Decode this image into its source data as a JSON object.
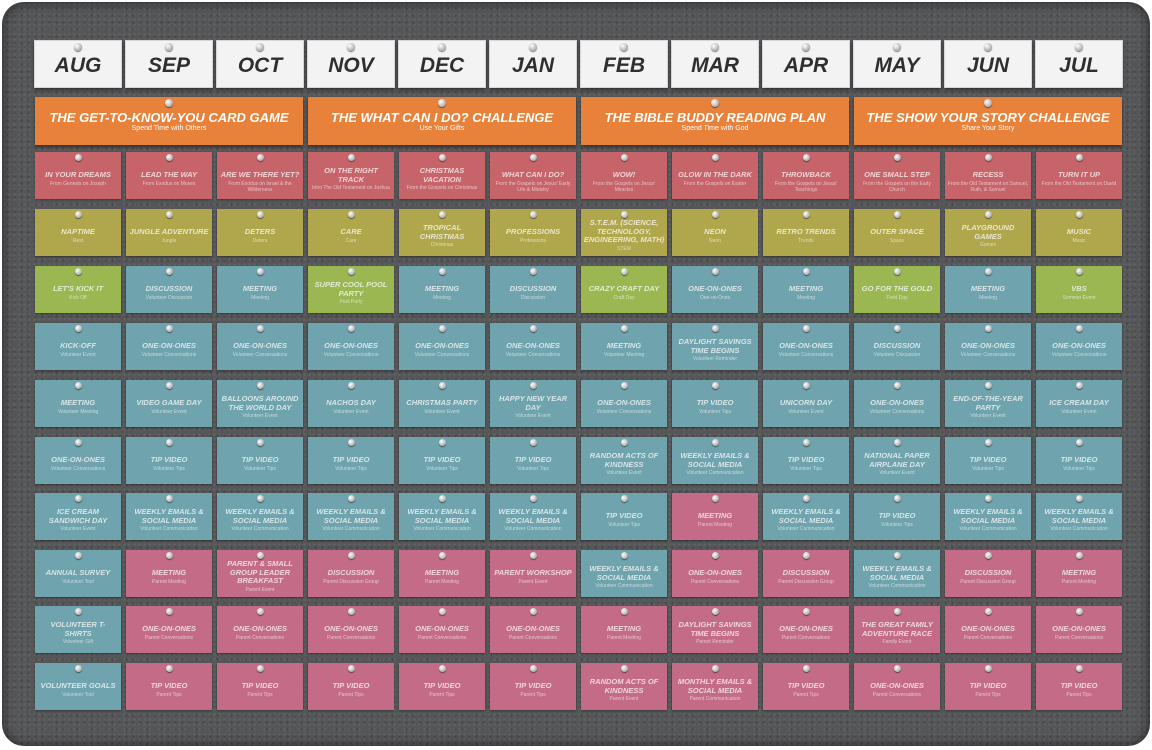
{
  "months": [
    "AUG",
    "SEP",
    "OCT",
    "NOV",
    "DEC",
    "JAN",
    "FEB",
    "MAR",
    "APR",
    "MAY",
    "JUN",
    "JUL"
  ],
  "banners": [
    {
      "title": "THE GET-TO-KNOW-YOU CARD GAME",
      "subtitle": "Spend Time with Others"
    },
    {
      "title": "THE WHAT CAN I DO? CHALLENGE",
      "subtitle": "Use Your Gifts"
    },
    {
      "title": "THE BIBLE BUDDY READING PLAN",
      "subtitle": "Spend Time with God"
    },
    {
      "title": "THE SHOW YOUR STORY CHALLENGE",
      "subtitle": "Share Your Story"
    }
  ],
  "colors": {
    "board": "#555658",
    "month_card": "#f3f3f3",
    "banner": "#e8813a",
    "red": "#c7646a",
    "teal": "#6fa3ad",
    "olive": "#b0a64c",
    "green": "#9ab752",
    "pink": "#c46c87"
  },
  "rows": [
    [
      {
        "title": "IN YOUR DREAMS",
        "sub": "From Genesis on Joseph",
        "color": "red"
      },
      {
        "title": "LEAD THE WAY",
        "sub": "From Exodus on Moses",
        "color": "red"
      },
      {
        "title": "ARE WE THERE YET?",
        "sub": "From Exodus on Israel & the Wilderness",
        "color": "red"
      },
      {
        "title": "ON THE RIGHT TRACK",
        "sub": "Intro The Old Testament on Joshua",
        "color": "red"
      },
      {
        "title": "CHRISTMAS VACATION",
        "sub": "From the Gospels on Christmas",
        "color": "red"
      },
      {
        "title": "WHAT CAN I DO?",
        "sub": "From the Gospels on Jesus' Early Life & Ministry",
        "color": "red"
      },
      {
        "title": "WOW!",
        "sub": "From the Gospels on Jesus' Miracles",
        "color": "red"
      },
      {
        "title": "GLOW IN THE DARK",
        "sub": "From the Gospels on Easter",
        "color": "red"
      },
      {
        "title": "THROWBACK",
        "sub": "From the Gospels on Jesus' Teachings",
        "color": "red"
      },
      {
        "title": "ONE SMALL STEP",
        "sub": "From the Gospels on the Early Church",
        "color": "red"
      },
      {
        "title": "RECESS",
        "sub": "From the Old Testament on Samuel, Ruth, & Samuel",
        "color": "red"
      },
      {
        "title": "TURN IT UP",
        "sub": "From the Old Testament on David",
        "color": "red"
      }
    ],
    [
      {
        "title": "NAPTIME",
        "sub": "Rest",
        "color": "olive"
      },
      {
        "title": "JUNGLE ADVENTURE",
        "sub": "Jungle",
        "color": "olive"
      },
      {
        "title": "DETERS",
        "sub": "Deters",
        "color": "olive"
      },
      {
        "title": "CARE",
        "sub": "Care",
        "color": "olive"
      },
      {
        "title": "TROPICAL CHRISTMAS",
        "sub": "Christmas",
        "color": "olive"
      },
      {
        "title": "PROFESSIONS",
        "sub": "Professions",
        "color": "olive"
      },
      {
        "title": "S.T.E.M. (SCIENCE, TECHNOLOGY, ENGINEERING, MATH)",
        "sub": "STEM",
        "color": "olive"
      },
      {
        "title": "NEON",
        "sub": "Neon",
        "color": "olive"
      },
      {
        "title": "RETRO TRENDS",
        "sub": "Trends",
        "color": "olive"
      },
      {
        "title": "OUTER SPACE",
        "sub": "Space",
        "color": "olive"
      },
      {
        "title": "PLAYGROUND GAMES",
        "sub": "Games",
        "color": "olive"
      },
      {
        "title": "MUSIC",
        "sub": "Music",
        "color": "olive"
      }
    ],
    [
      {
        "title": "LET'S KICK IT",
        "sub": "Kick Off",
        "color": "green"
      },
      {
        "title": "DISCUSSION",
        "sub": "Volunteer Discussion",
        "color": "teal"
      },
      {
        "title": "MEETING",
        "sub": "Meeting",
        "color": "teal"
      },
      {
        "title": "SUPER COOL POOL PARTY",
        "sub": "Pool Party",
        "color": "green"
      },
      {
        "title": "MEETING",
        "sub": "Meeting",
        "color": "teal"
      },
      {
        "title": "DISCUSSION",
        "sub": "Discussion",
        "color": "teal"
      },
      {
        "title": "CRAZY CRAFT DAY",
        "sub": "Craft Day",
        "color": "green"
      },
      {
        "title": "ONE-ON-ONES",
        "sub": "One-on-Ones",
        "color": "teal"
      },
      {
        "title": "MEETING",
        "sub": "Meeting",
        "color": "teal"
      },
      {
        "title": "GO FOR THE GOLD",
        "sub": "Field Day",
        "color": "green"
      },
      {
        "title": "MEETING",
        "sub": "Meeting",
        "color": "teal"
      },
      {
        "title": "VBS",
        "sub": "Summer Event",
        "color": "green"
      }
    ],
    [
      {
        "title": "KICK-OFF",
        "sub": "Volunteer Event",
        "color": "teal"
      },
      {
        "title": "ONE-ON-ONES",
        "sub": "Volunteer Conversations",
        "color": "teal"
      },
      {
        "title": "ONE-ON-ONES",
        "sub": "Volunteer Conversations",
        "color": "teal"
      },
      {
        "title": "ONE-ON-ONES",
        "sub": "Volunteer Conversations",
        "color": "teal"
      },
      {
        "title": "ONE-ON-ONES",
        "sub": "Volunteer Conversations",
        "color": "teal"
      },
      {
        "title": "ONE-ON-ONES",
        "sub": "Volunteer Conversations",
        "color": "teal"
      },
      {
        "title": "MEETING",
        "sub": "Volunteer Meeting",
        "color": "teal"
      },
      {
        "title": "DAYLIGHT SAVINGS TIME BEGINS",
        "sub": "Volunteer Reminder",
        "color": "teal"
      },
      {
        "title": "ONE-ON-ONES",
        "sub": "Volunteer Conversations",
        "color": "teal"
      },
      {
        "title": "DISCUSSION",
        "sub": "Volunteer Discussion",
        "color": "teal"
      },
      {
        "title": "ONE-ON-ONES",
        "sub": "Volunteer Conversations",
        "color": "teal"
      },
      {
        "title": "ONE-ON-ONES",
        "sub": "Volunteer Conversations",
        "color": "teal"
      }
    ],
    [
      {
        "title": "MEETING",
        "sub": "Volunteer Meeting",
        "color": "teal"
      },
      {
        "title": "VIDEO GAME DAY",
        "sub": "Volunteer Event",
        "color": "teal"
      },
      {
        "title": "BALLOONS AROUND THE WORLD DAY",
        "sub": "Volunteer Event",
        "color": "teal"
      },
      {
        "title": "NACHOS DAY",
        "sub": "Volunteer Event",
        "color": "teal"
      },
      {
        "title": "CHRISTMAS PARTY",
        "sub": "Volunteer Event",
        "color": "teal"
      },
      {
        "title": "HAPPY NEW YEAR DAY",
        "sub": "Volunteer Event",
        "color": "teal"
      },
      {
        "title": "ONE-ON-ONES",
        "sub": "Volunteer Conversations",
        "color": "teal"
      },
      {
        "title": "TIP VIDEO",
        "sub": "Volunteer Tips",
        "color": "teal"
      },
      {
        "title": "UNICORN DAY",
        "sub": "Volunteer Event",
        "color": "teal"
      },
      {
        "title": "ONE-ON-ONES",
        "sub": "Volunteer Conversations",
        "color": "teal"
      },
      {
        "title": "END-OF-THE-YEAR PARTY",
        "sub": "Volunteer Event",
        "color": "teal"
      },
      {
        "title": "ICE CREAM DAY",
        "sub": "Volunteer Event",
        "color": "teal"
      }
    ],
    [
      {
        "title": "ONE-ON-ONES",
        "sub": "Volunteer Conversations",
        "color": "teal"
      },
      {
        "title": "TIP VIDEO",
        "sub": "Volunteer Tips",
        "color": "teal"
      },
      {
        "title": "TIP VIDEO",
        "sub": "Volunteer Tips",
        "color": "teal"
      },
      {
        "title": "TIP VIDEO",
        "sub": "Volunteer Tips",
        "color": "teal"
      },
      {
        "title": "TIP VIDEO",
        "sub": "Volunteer Tips",
        "color": "teal"
      },
      {
        "title": "TIP VIDEO",
        "sub": "Volunteer Tips",
        "color": "teal"
      },
      {
        "title": "RANDOM ACTS OF KINDNESS",
        "sub": "Volunteer Event",
        "color": "teal"
      },
      {
        "title": "WEEKLY EMAILS & SOCIAL MEDIA",
        "sub": "Volunteer Communication",
        "color": "teal"
      },
      {
        "title": "TIP VIDEO",
        "sub": "Volunteer Tips",
        "color": "teal"
      },
      {
        "title": "NATIONAL PAPER AIRPLANE DAY",
        "sub": "Volunteer Event",
        "color": "teal"
      },
      {
        "title": "TIP VIDEO",
        "sub": "Volunteer Tips",
        "color": "teal"
      },
      {
        "title": "TIP VIDEO",
        "sub": "Volunteer Tips",
        "color": "teal"
      }
    ],
    [
      {
        "title": "ICE CREAM SANDWICH DAY",
        "sub": "Volunteer Event",
        "color": "teal"
      },
      {
        "title": "WEEKLY EMAILS & SOCIAL MEDIA",
        "sub": "Volunteer Communication",
        "color": "teal"
      },
      {
        "title": "WEEKLY EMAILS & SOCIAL MEDIA",
        "sub": "Volunteer Communication",
        "color": "teal"
      },
      {
        "title": "WEEKLY EMAILS & SOCIAL MEDIA",
        "sub": "Volunteer Communication",
        "color": "teal"
      },
      {
        "title": "WEEKLY EMAILS & SOCIAL MEDIA",
        "sub": "Volunteer Communication",
        "color": "teal"
      },
      {
        "title": "WEEKLY EMAILS & SOCIAL MEDIA",
        "sub": "Volunteer Communication",
        "color": "teal"
      },
      {
        "title": "TIP VIDEO",
        "sub": "Volunteer Tips",
        "color": "teal"
      },
      {
        "title": "MEETING",
        "sub": "Parent Meeting",
        "color": "pink"
      },
      {
        "title": "WEEKLY EMAILS & SOCIAL MEDIA",
        "sub": "Volunteer Communication",
        "color": "teal"
      },
      {
        "title": "TIP VIDEO",
        "sub": "Volunteer Tips",
        "color": "teal"
      },
      {
        "title": "WEEKLY EMAILS & SOCIAL MEDIA",
        "sub": "Volunteer Communication",
        "color": "teal"
      },
      {
        "title": "WEEKLY EMAILS & SOCIAL MEDIA",
        "sub": "Volunteer Communication",
        "color": "teal"
      }
    ],
    [
      {
        "title": "ANNUAL SURVEY",
        "sub": "Volunteer Tool",
        "color": "teal"
      },
      {
        "title": "MEETING",
        "sub": "Parent Meeting",
        "color": "pink"
      },
      {
        "title": "PARENT & SMALL GROUP LEADER BREAKFAST",
        "sub": "Parent Event",
        "color": "pink"
      },
      {
        "title": "DISCUSSION",
        "sub": "Parent Discussion Group",
        "color": "pink"
      },
      {
        "title": "MEETING",
        "sub": "Parent Meeting",
        "color": "pink"
      },
      {
        "title": "PARENT WORKSHOP",
        "sub": "Parent Event",
        "color": "pink"
      },
      {
        "title": "WEEKLY EMAILS & SOCIAL MEDIA",
        "sub": "Volunteer Communication",
        "color": "teal"
      },
      {
        "title": "ONE-ON-ONES",
        "sub": "Parent Conversations",
        "color": "pink"
      },
      {
        "title": "DISCUSSION",
        "sub": "Parent Discussion Group",
        "color": "pink"
      },
      {
        "title": "WEEKLY EMAILS & SOCIAL MEDIA",
        "sub": "Volunteer Communication",
        "color": "teal"
      },
      {
        "title": "DISCUSSION",
        "sub": "Parent Discussion Group",
        "color": "pink"
      },
      {
        "title": "MEETING",
        "sub": "Parent Meeting",
        "color": "pink"
      }
    ],
    [
      {
        "title": "VOLUNTEER T-SHIRTS",
        "sub": "Volunteer Gift",
        "color": "teal"
      },
      {
        "title": "ONE-ON-ONES",
        "sub": "Parent Conversations",
        "color": "pink"
      },
      {
        "title": "ONE-ON-ONES",
        "sub": "Parent Conversations",
        "color": "pink"
      },
      {
        "title": "ONE-ON-ONES",
        "sub": "Parent Conversations",
        "color": "pink"
      },
      {
        "title": "ONE-ON-ONES",
        "sub": "Parent Conversations",
        "color": "pink"
      },
      {
        "title": "ONE-ON-ONES",
        "sub": "Parent Conversations",
        "color": "pink"
      },
      {
        "title": "MEETING",
        "sub": "Parent Meeting",
        "color": "pink"
      },
      {
        "title": "DAYLIGHT SAVINGS TIME BEGINS",
        "sub": "Parent Reminder",
        "color": "pink"
      },
      {
        "title": "ONE-ON-ONES",
        "sub": "Parent Conversations",
        "color": "pink"
      },
      {
        "title": "THE GREAT FAMILY ADVENTURE RACE",
        "sub": "Family Event",
        "color": "pink"
      },
      {
        "title": "ONE-ON-ONES",
        "sub": "Parent Conversations",
        "color": "pink"
      },
      {
        "title": "ONE-ON-ONES",
        "sub": "Parent Conversations",
        "color": "pink"
      }
    ],
    [
      {
        "title": "VOLUNTEER GOALS",
        "sub": "Volunteer Tool",
        "color": "teal"
      },
      {
        "title": "TIP VIDEO",
        "sub": "Parent Tips",
        "color": "pink"
      },
      {
        "title": "TIP VIDEO",
        "sub": "Parent Tips",
        "color": "pink"
      },
      {
        "title": "TIP VIDEO",
        "sub": "Parent Tips",
        "color": "pink"
      },
      {
        "title": "TIP VIDEO",
        "sub": "Parent Tips",
        "color": "pink"
      },
      {
        "title": "TIP VIDEO",
        "sub": "Parent Tips",
        "color": "pink"
      },
      {
        "title": "RANDOM ACTS OF KINDNESS",
        "sub": "Parent Event",
        "color": "pink"
      },
      {
        "title": "MONTHLY EMAILS & SOCIAL MEDIA",
        "sub": "Parent Communication",
        "color": "pink"
      },
      {
        "title": "TIP VIDEO",
        "sub": "Parent Tips",
        "color": "pink"
      },
      {
        "title": "ONE-ON-ONES",
        "sub": "Parent Conversations",
        "color": "pink"
      },
      {
        "title": "TIP VIDEO",
        "sub": "Parent Tips",
        "color": "pink"
      },
      {
        "title": "TIP VIDEO",
        "sub": "Parent Tips",
        "color": "pink"
      }
    ]
  ]
}
